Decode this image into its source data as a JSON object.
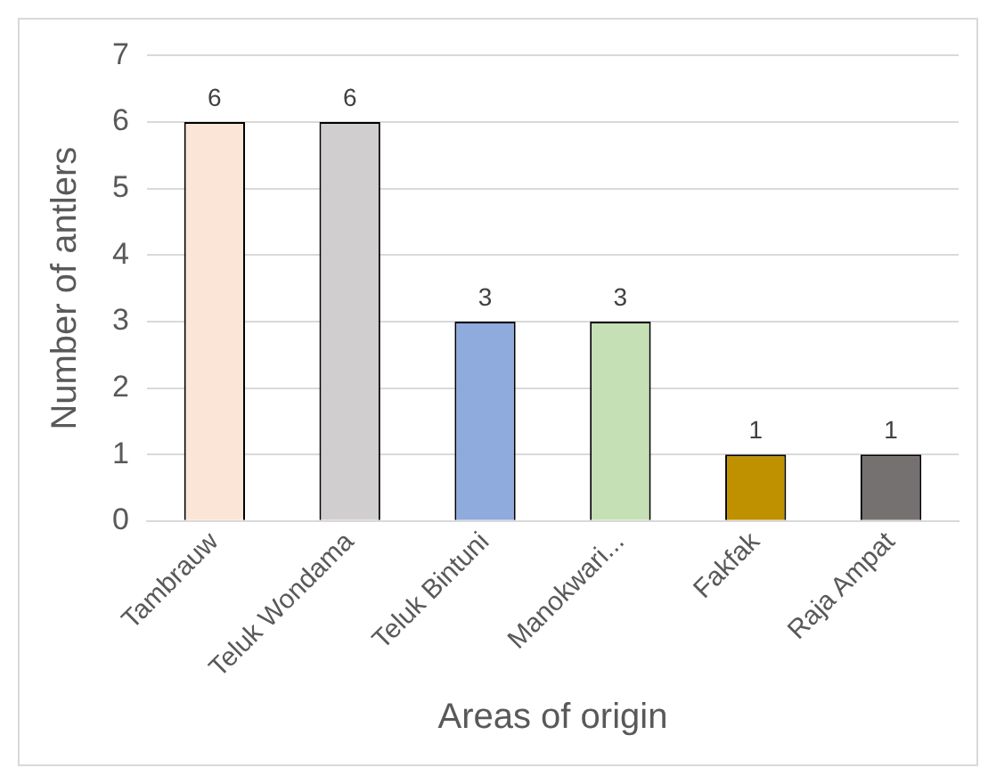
{
  "chart_data": {
    "type": "bar",
    "xlabel": "Areas of origin",
    "ylabel": "Number of antlers",
    "categories": [
      "Tambrauw",
      "Teluk Wondama",
      "Teluk Bintuni",
      "Manokwari...",
      "Fakfak",
      "Raja Ampat"
    ],
    "values": [
      6,
      6,
      3,
      3,
      1,
      1
    ],
    "colors": [
      "#fbe5d6",
      "#d0cece",
      "#8faadc",
      "#c5e0b4",
      "#bf9000",
      "#767171"
    ],
    "ylim": [
      0,
      7
    ],
    "yticks": [
      0,
      1,
      2,
      3,
      4,
      5,
      6,
      7
    ],
    "grid": "y",
    "data_labels": true,
    "legend": false
  }
}
